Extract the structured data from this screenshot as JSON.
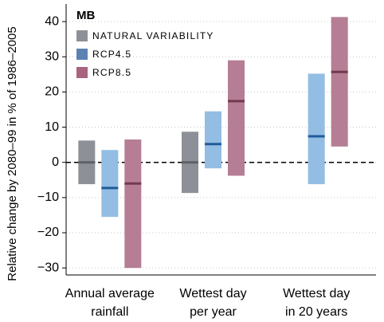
{
  "chart_data": {
    "type": "range-bar",
    "ylabel": "Relative change by 2080–99 in % of 1986–2005",
    "legend_title": "MB",
    "legend_loc": "upper left",
    "categories": [
      [
        "Annual average",
        "rainfall"
      ],
      [
        "Wettest day",
        "per year"
      ],
      [
        "Wettest day",
        "in 20 years"
      ]
    ],
    "series": [
      {
        "name": "NATURAL VARIABILITY",
        "color": "#8d9096",
        "legend_color": "#8d9096",
        "median_color": "#5e6166",
        "low": [
          -6.2,
          -8.7,
          null
        ],
        "high": [
          6.2,
          8.7,
          null
        ],
        "values": [
          0,
          0,
          null
        ]
      },
      {
        "name": "RCP4.5",
        "color": "#93bde3",
        "legend_color": "#5b83b2",
        "median_color": "#1f5d98",
        "low": [
          -15.5,
          -1.7,
          -6.2
        ],
        "high": [
          3.5,
          14.5,
          25.2
        ],
        "values": [
          -7.3,
          5.2,
          7.4
        ]
      },
      {
        "name": "RCP8.5",
        "color": "#b57e95",
        "legend_color": "#a8647f",
        "median_color": "#74394f",
        "low": [
          -30,
          -3.8,
          4.5
        ],
        "high": [
          6.5,
          29,
          41.3
        ],
        "values": [
          -6,
          17.4,
          25.7
        ]
      }
    ],
    "ylim": [
      -32,
      45
    ],
    "yticks": [
      {
        "value": -30,
        "label": "−30"
      },
      {
        "value": -20,
        "label": "−20"
      },
      {
        "value": -10,
        "label": "−10"
      },
      0,
      10,
      20,
      30,
      40
    ],
    "grid": true
  }
}
